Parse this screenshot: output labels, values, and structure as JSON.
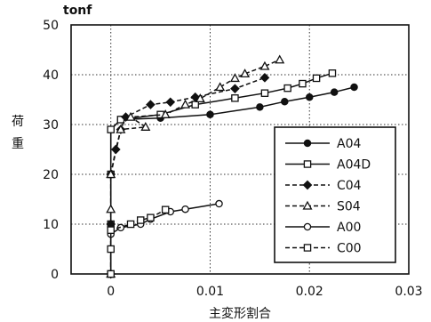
{
  "chart_data": {
    "type": "line",
    "unit_label": "tonf",
    "xlabel": "主変形割合",
    "ylabel": [
      "荷",
      "重"
    ],
    "xlim": [
      -0.004,
      0.03
    ],
    "ylim": [
      0,
      50
    ],
    "x_ticks": [
      0,
      0.01,
      0.02,
      0.03
    ],
    "x_tick_labels": [
      "0",
      "0.01",
      "0.02",
      "0.03"
    ],
    "y_ticks": [
      0,
      10,
      20,
      30,
      40,
      50
    ],
    "y_tick_labels": [
      "0",
      "10",
      "20",
      "30",
      "40",
      "50"
    ],
    "grid": true,
    "legend_position": "right",
    "series": [
      {
        "name": "A04",
        "marker": "circle-filled",
        "line": "solid",
        "points": [
          [
            0,
            0
          ],
          [
            0,
            10
          ],
          [
            0,
            20
          ],
          [
            0,
            29
          ],
          [
            0.001,
            31
          ],
          [
            0.005,
            31.3
          ],
          [
            0.01,
            32
          ],
          [
            0.015,
            33.5
          ],
          [
            0.0175,
            34.6
          ],
          [
            0.02,
            35.5
          ],
          [
            0.0225,
            36.5
          ],
          [
            0.0245,
            37.5
          ]
        ]
      },
      {
        "name": "A04D",
        "marker": "square-open",
        "line": "solid",
        "points": [
          [
            0,
            0
          ],
          [
            0,
            10
          ],
          [
            0,
            20
          ],
          [
            0,
            29
          ],
          [
            0.001,
            31
          ],
          [
            0.005,
            32
          ],
          [
            0.0085,
            34
          ],
          [
            0.0125,
            35.3
          ],
          [
            0.0155,
            36.3
          ],
          [
            0.0178,
            37.3
          ],
          [
            0.0193,
            38.2
          ],
          [
            0.0207,
            39.3
          ],
          [
            0.0223,
            40.3
          ]
        ]
      },
      {
        "name": "C04",
        "marker": "diamond-filled",
        "line": "dashed",
        "points": [
          [
            0,
            0
          ],
          [
            0,
            10
          ],
          [
            0,
            20
          ],
          [
            0.0005,
            25
          ],
          [
            0.001,
            29
          ],
          [
            0.0015,
            31.5
          ],
          [
            0.004,
            34
          ],
          [
            0.006,
            34.5
          ],
          [
            0.0085,
            35.5
          ],
          [
            0.0125,
            37.2
          ],
          [
            0.0155,
            39.4
          ]
        ]
      },
      {
        "name": "S04",
        "marker": "triangle-open",
        "line": "dashed",
        "points": [
          [
            0,
            0
          ],
          [
            0,
            13
          ],
          [
            0,
            20
          ],
          [
            0.001,
            29
          ],
          [
            0.0035,
            29.5
          ],
          [
            0.002,
            31.5
          ],
          [
            0.0055,
            32
          ],
          [
            0.0075,
            34
          ],
          [
            0.009,
            35.2
          ],
          [
            0.011,
            37.5
          ],
          [
            0.0125,
            39.3
          ],
          [
            0.0135,
            40.2
          ],
          [
            0.0155,
            41.7
          ],
          [
            0.017,
            43
          ]
        ]
      },
      {
        "name": "A00",
        "marker": "circle-open",
        "line": "solid",
        "points": [
          [
            0,
            0
          ],
          [
            0,
            8
          ],
          [
            0.001,
            9.3
          ],
          [
            0.003,
            10
          ],
          [
            0.004,
            11
          ],
          [
            0.006,
            12.5
          ],
          [
            0.0075,
            13
          ],
          [
            0.0109,
            14.1
          ]
        ]
      },
      {
        "name": "C00",
        "marker": "square-open",
        "line": "dashed",
        "points": [
          [
            0,
            0
          ],
          [
            0,
            5
          ],
          [
            0,
            8.8
          ],
          [
            0.002,
            10
          ],
          [
            0.003,
            10.8
          ],
          [
            0.004,
            11.3
          ],
          [
            0.0055,
            12.9
          ]
        ]
      }
    ]
  }
}
